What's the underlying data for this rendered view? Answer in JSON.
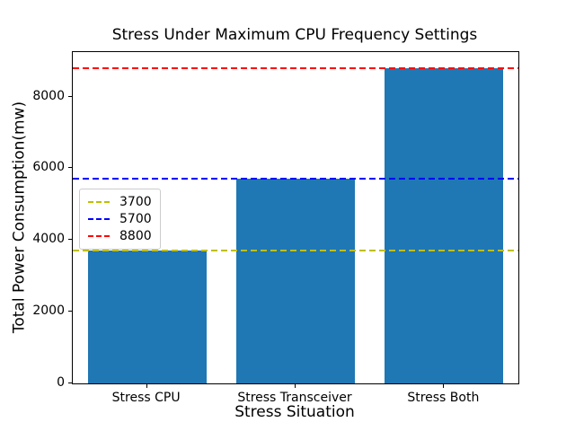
{
  "chart_data": {
    "type": "bar",
    "title": "Stress Under Maximum CPU Frequency Settings",
    "xlabel": "Stress Situation",
    "ylabel": "Total Power Consumption(mw)",
    "categories": [
      "Stress CPU",
      "Stress Transceiver",
      "Stress Both"
    ],
    "values": [
      3700,
      5700,
      8800
    ],
    "bar_color": "#1f77b4",
    "bar_width_fraction": 0.8,
    "ylim": [
      0,
      9240
    ],
    "yticks": [
      0,
      2000,
      4000,
      6000,
      8000
    ],
    "grid": false,
    "legend_position": "center-left",
    "hlines": [
      {
        "value": 3700,
        "label": "3700",
        "color": "#bfbf00",
        "style": "dashed"
      },
      {
        "value": 5700,
        "label": "5700",
        "color": "#0000ff",
        "style": "dashed"
      },
      {
        "value": 8800,
        "label": "8800",
        "color": "#ff0000",
        "style": "dashed"
      }
    ]
  }
}
